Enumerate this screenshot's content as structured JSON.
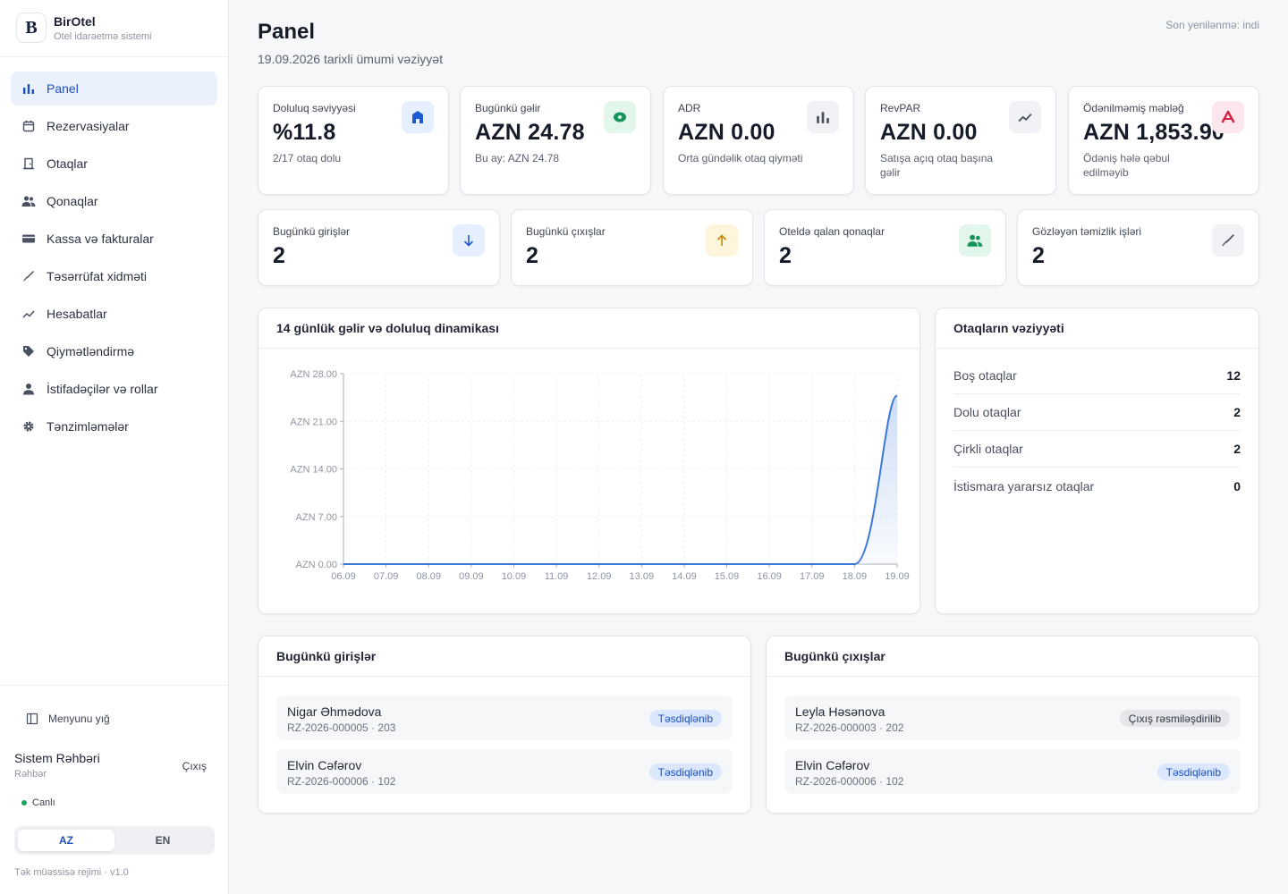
{
  "brand": {
    "name": "BirOtel",
    "subtitle": "Otel idarəetmə sistemi"
  },
  "nav": [
    {
      "label": "Panel",
      "icon": "bar-chart-icon",
      "active": true
    },
    {
      "label": "Rezervasiyalar",
      "icon": "calendar-icon"
    },
    {
      "label": "Otaqlar",
      "icon": "door-icon"
    },
    {
      "label": "Qonaqlar",
      "icon": "people-icon"
    },
    {
      "label": "Kassa və fakturalar",
      "icon": "cash-icon"
    },
    {
      "label": "Təsərrüfat xidməti",
      "icon": "broom-icon"
    },
    {
      "label": "Hesabatlar",
      "icon": "trend-icon"
    },
    {
      "label": "Qiymətləndirmə",
      "icon": "tag-icon"
    },
    {
      "label": "İstifadəçilər və rollar",
      "icon": "user-icon"
    },
    {
      "label": "Tənzimləmələr",
      "icon": "gear-icon"
    }
  ],
  "sidebar_footer": {
    "collapse_label": "Menyunu yığ",
    "user_name": "Sistem Rəhbəri",
    "user_role": "Rəhbər",
    "logout_label": "Çıxış",
    "status_label": "Canlı",
    "lang_az": "AZ",
    "lang_en": "EN",
    "version_note": "Tək müəssisə rejimi · v1.0"
  },
  "header": {
    "title": "Panel",
    "subtitle": "19.09.2026 tarixli ümumi vəziyyət",
    "updated": "Son yenilənmə: indi"
  },
  "kpis": [
    {
      "label": "Doluluq səviyyəsi",
      "value": "%11.8",
      "note": "2/17 otaq dolu",
      "icon": "building-icon",
      "color": "blue"
    },
    {
      "label": "Bugünkü gəlir",
      "value": "AZN 24.78",
      "note": "Bu ay: AZN 24.78",
      "icon": "money-icon",
      "color": "green"
    },
    {
      "label": "ADR",
      "value": "AZN 0.00",
      "note": "Orta gündəlik otaq qiyməti",
      "icon": "bar-chart-icon",
      "color": "gray"
    },
    {
      "label": "RevPAR",
      "value": "AZN 0.00",
      "note": "Satışa açıq otaq başına gəlir",
      "icon": "trend-icon",
      "color": "gray"
    },
    {
      "label": "Ödənilməmiş məbləğ",
      "value": "AZN 1,853.90",
      "note": "Ödəniş hələ qəbul edilməyib",
      "icon": "alert-icon",
      "color": "red"
    }
  ],
  "ops": [
    {
      "label": "Bugünkü girişlər",
      "value": "2",
      "icon": "arrow-down-icon",
      "color": "blue"
    },
    {
      "label": "Bugünkü çıxışlar",
      "value": "2",
      "icon": "arrow-up-icon",
      "color": "amber"
    },
    {
      "label": "Oteldə qalan qonaqlar",
      "value": "2",
      "icon": "people-icon",
      "color": "green"
    },
    {
      "label": "Gözləyən təmizlik işləri",
      "value": "2",
      "icon": "broom-icon",
      "color": "gray"
    }
  ],
  "chart_title": "14 günlük gəlir və doluluq dinamikası",
  "chart_data": {
    "type": "area",
    "x": [
      "06.09",
      "07.09",
      "08.09",
      "09.09",
      "10.09",
      "11.09",
      "12.09",
      "13.09",
      "14.09",
      "15.09",
      "16.09",
      "17.09",
      "18.09",
      "19.09"
    ],
    "series": [
      {
        "values": [
          0,
          0,
          0,
          0,
          0,
          0,
          0,
          0,
          0,
          0,
          0,
          0,
          0,
          24.78
        ]
      }
    ],
    "yticks": [
      "AZN 0.00",
      "AZN 7.00",
      "AZN 14.00",
      "AZN 21.00",
      "AZN 28.00"
    ],
    "ylim": [
      0,
      28
    ],
    "grid": true,
    "color": "#3a78d8"
  },
  "room_status": {
    "title": "Otaqların vəziyyəti",
    "rows": [
      {
        "label": "Boş otaqlar",
        "value": "12"
      },
      {
        "label": "Dolu otaqlar",
        "value": "2"
      },
      {
        "label": "Çirkli otaqlar",
        "value": "2"
      },
      {
        "label": "İstismara yararsız otaqlar",
        "value": "0"
      }
    ]
  },
  "arrivals": {
    "title": "Bugünkü girişlər",
    "rows": [
      {
        "name": "Nigar Əhmədova",
        "meta": "RZ-2026-000005 · 203",
        "status": "Təsdiqlənib",
        "tone": "blue"
      },
      {
        "name": "Elvin Cəfərov",
        "meta": "RZ-2026-000006 · 102",
        "status": "Təsdiqlənib",
        "tone": "blue"
      }
    ]
  },
  "departures": {
    "title": "Bugünkü çıxışlar",
    "rows": [
      {
        "name": "Leyla Həsənova",
        "meta": "RZ-2026-000003 · 202",
        "status": "Çıxış rəsmiləşdirilib",
        "tone": "gray"
      },
      {
        "name": "Elvin Cəfərov",
        "meta": "RZ-2026-000006 · 102",
        "status": "Təsdiqlənib",
        "tone": "blue"
      }
    ]
  }
}
